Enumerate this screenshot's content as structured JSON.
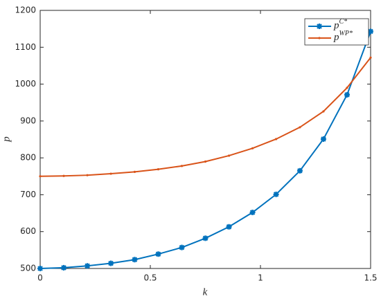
{
  "chart_data": {
    "type": "line",
    "x_label": "k",
    "y_label": "p",
    "x": [
      0,
      0.107,
      0.214,
      0.321,
      0.429,
      0.536,
      0.643,
      0.75,
      0.857,
      0.964,
      1.071,
      1.179,
      1.286,
      1.393,
      1.5
    ],
    "series": [
      {
        "name": "pC*",
        "color": "#0072bd",
        "marker": "star",
        "values": [
          500,
          502,
          507,
          514,
          524,
          539,
          557,
          582,
          613,
          652,
          701,
          765,
          851,
          971,
          1143
        ]
      },
      {
        "name": "pWP*",
        "color": "#d95319",
        "marker": "dot",
        "values": [
          750,
          751,
          753,
          757,
          762,
          769,
          778,
          790,
          806,
          826,
          851,
          883,
          926,
          990,
          1072
        ]
      }
    ],
    "xlim": [
      0,
      1.5
    ],
    "xticks": [
      0,
      0.5,
      1,
      1.5
    ],
    "ylim": [
      500,
      1200
    ],
    "yticks": [
      500,
      600,
      700,
      800,
      900,
      1000,
      1100,
      1200
    ],
    "grid": false,
    "legend": "top-right"
  }
}
